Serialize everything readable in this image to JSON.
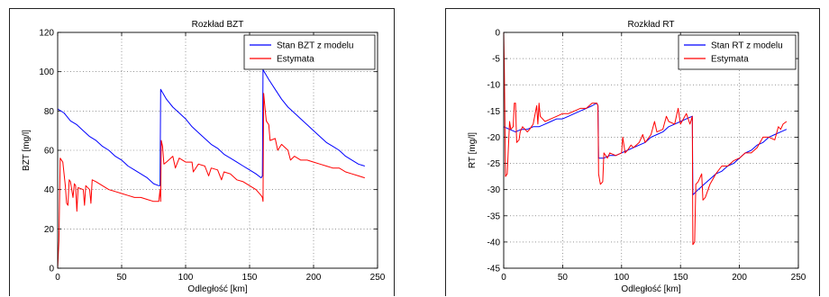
{
  "chart_data": [
    {
      "type": "line",
      "title": "Rozkład BZT",
      "xlabel": "Odległość [km]",
      "ylabel": "BZT [mg/l]",
      "xlim": [
        0,
        250
      ],
      "ylim": [
        0,
        120
      ],
      "xticks": [
        0,
        50,
        100,
        150,
        200,
        250
      ],
      "yticks": [
        0,
        20,
        40,
        60,
        80,
        100,
        120
      ],
      "grid": true,
      "legend_position": "top-right",
      "series": [
        {
          "name": "Stan BZT z modelu",
          "color": "#0000ff",
          "points": [
            [
              0,
              81
            ],
            [
              5,
              79
            ],
            [
              10,
              75
            ],
            [
              15,
              73
            ],
            [
              20,
              70
            ],
            [
              25,
              67
            ],
            [
              30,
              65
            ],
            [
              35,
              62
            ],
            [
              40,
              60
            ],
            [
              45,
              57
            ],
            [
              50,
              55
            ],
            [
              55,
              52
            ],
            [
              60,
              50
            ],
            [
              65,
              48
            ],
            [
              70,
              46
            ],
            [
              75,
              43
            ],
            [
              79,
              42
            ],
            [
              80,
              42
            ],
            [
              80.5,
              91
            ],
            [
              85,
              86
            ],
            [
              90,
              82
            ],
            [
              95,
              79
            ],
            [
              100,
              76
            ],
            [
              105,
              72
            ],
            [
              110,
              69
            ],
            [
              115,
              66
            ],
            [
              120,
              63
            ],
            [
              125,
              61
            ],
            [
              130,
              58
            ],
            [
              135,
              56
            ],
            [
              140,
              54
            ],
            [
              145,
              52
            ],
            [
              150,
              50
            ],
            [
              155,
              48
            ],
            [
              159,
              46
            ],
            [
              160,
              47
            ],
            [
              160.5,
              101
            ],
            [
              165,
              96
            ],
            [
              170,
              91
            ],
            [
              175,
              86
            ],
            [
              180,
              82
            ],
            [
              185,
              79
            ],
            [
              190,
              76
            ],
            [
              195,
              73
            ],
            [
              200,
              70
            ],
            [
              205,
              67
            ],
            [
              210,
              64
            ],
            [
              215,
              62
            ],
            [
              220,
              60
            ],
            [
              225,
              57
            ],
            [
              230,
              55
            ],
            [
              235,
              53
            ],
            [
              240,
              52
            ]
          ]
        },
        {
          "name": "Estymata",
          "color": "#ff0000",
          "points": [
            [
              0,
              0
            ],
            [
              1,
              14
            ],
            [
              2,
              56
            ],
            [
              4,
              54
            ],
            [
              6,
              42
            ],
            [
              7,
              33
            ],
            [
              8,
              32
            ],
            [
              9,
              45
            ],
            [
              10,
              44
            ],
            [
              12,
              36
            ],
            [
              13,
              43
            ],
            [
              14,
              42
            ],
            [
              15,
              29
            ],
            [
              16,
              41
            ],
            [
              20,
              40
            ],
            [
              21,
              32
            ],
            [
              22,
              42
            ],
            [
              25,
              40
            ],
            [
              26,
              33
            ],
            [
              27,
              45
            ],
            [
              30,
              44
            ],
            [
              35,
              42
            ],
            [
              40,
              40
            ],
            [
              45,
              39
            ],
            [
              50,
              38
            ],
            [
              55,
              37
            ],
            [
              60,
              36
            ],
            [
              65,
              36
            ],
            [
              70,
              35
            ],
            [
              75,
              34
            ],
            [
              79,
              34
            ],
            [
              80,
              40
            ],
            [
              80.5,
              34
            ],
            [
              81,
              65
            ],
            [
              82,
              62
            ],
            [
              83,
              53
            ],
            [
              85,
              54
            ],
            [
              90,
              57
            ],
            [
              92,
              51
            ],
            [
              95,
              56
            ],
            [
              100,
              54
            ],
            [
              105,
              54
            ],
            [
              106,
              49
            ],
            [
              110,
              53
            ],
            [
              115,
              52
            ],
            [
              118,
              47
            ],
            [
              120,
              51
            ],
            [
              125,
              50
            ],
            [
              128,
              45
            ],
            [
              130,
              49
            ],
            [
              135,
              48
            ],
            [
              140,
              45
            ],
            [
              145,
              44
            ],
            [
              150,
              42
            ],
            [
              155,
              40
            ],
            [
              159,
              37
            ],
            [
              160,
              36
            ],
            [
              160.5,
              34
            ],
            [
              161,
              89
            ],
            [
              162,
              82
            ],
            [
              163,
              75
            ],
            [
              165,
              73
            ],
            [
              166,
              65
            ],
            [
              170,
              66
            ],
            [
              172,
              60
            ],
            [
              175,
              63
            ],
            [
              180,
              60
            ],
            [
              182,
              55
            ],
            [
              185,
              57
            ],
            [
              190,
              55
            ],
            [
              195,
              55
            ],
            [
              200,
              54
            ],
            [
              205,
              53
            ],
            [
              210,
              52
            ],
            [
              215,
              51
            ],
            [
              220,
              51
            ],
            [
              225,
              49
            ],
            [
              230,
              48
            ],
            [
              235,
              47
            ],
            [
              240,
              46
            ]
          ]
        }
      ]
    },
    {
      "type": "line",
      "title": "Rozkład RT",
      "xlabel": "Odległość [km]",
      "ylabel": "RT [mg/l]",
      "xlim": [
        0,
        250
      ],
      "ylim": [
        -45,
        0
      ],
      "xticks": [
        0,
        50,
        100,
        150,
        200,
        250
      ],
      "yticks": [
        0,
        -5,
        -10,
        -15,
        -20,
        -25,
        -30,
        -35,
        -40,
        -45
      ],
      "grid": true,
      "legend_position": "top-right",
      "series": [
        {
          "name": "Stan RT z modelu",
          "color": "#0000ff",
          "points": [
            [
              0,
              -18
            ],
            [
              5,
              -18.5
            ],
            [
              10,
              -19
            ],
            [
              15,
              -18.5
            ],
            [
              20,
              -18.5
            ],
            [
              25,
              -18
            ],
            [
              30,
              -18
            ],
            [
              35,
              -17.5
            ],
            [
              40,
              -17
            ],
            [
              45,
              -16.5
            ],
            [
              50,
              -16.5
            ],
            [
              55,
              -16
            ],
            [
              60,
              -15.5
            ],
            [
              65,
              -15
            ],
            [
              70,
              -14.5
            ],
            [
              75,
              -14
            ],
            [
              79,
              -13.5
            ],
            [
              80,
              -14
            ],
            [
              80.5,
              -24
            ],
            [
              85,
              -24
            ],
            [
              90,
              -23.5
            ],
            [
              95,
              -23.5
            ],
            [
              100,
              -23
            ],
            [
              105,
              -22.5
            ],
            [
              110,
              -22
            ],
            [
              115,
              -21.5
            ],
            [
              120,
              -21
            ],
            [
              125,
              -20
            ],
            [
              130,
              -19.5
            ],
            [
              135,
              -19
            ],
            [
              140,
              -18
            ],
            [
              145,
              -17.5
            ],
            [
              150,
              -17
            ],
            [
              155,
              -16.5
            ],
            [
              160,
              -16
            ],
            [
              160.5,
              -31
            ],
            [
              165,
              -30
            ],
            [
              170,
              -29
            ],
            [
              175,
              -28
            ],
            [
              180,
              -27
            ],
            [
              185,
              -26.5
            ],
            [
              190,
              -25.5
            ],
            [
              195,
              -25
            ],
            [
              200,
              -24
            ],
            [
              205,
              -23
            ],
            [
              210,
              -22.5
            ],
            [
              215,
              -21.5
            ],
            [
              220,
              -21
            ],
            [
              225,
              -20
            ],
            [
              230,
              -19.5
            ],
            [
              235,
              -19
            ],
            [
              240,
              -18.5
            ]
          ]
        },
        {
          "name": "Estymata",
          "color": "#ff0000",
          "points": [
            [
              0,
              0
            ],
            [
              0.5,
              -7
            ],
            [
              1.5,
              -27.5
            ],
            [
              3,
              -27
            ],
            [
              5,
              -17
            ],
            [
              6,
              -18.5
            ],
            [
              8,
              -18
            ],
            [
              9,
              -13.5
            ],
            [
              10,
              -13.5
            ],
            [
              11,
              -21
            ],
            [
              13,
              -20.5
            ],
            [
              14,
              -19
            ],
            [
              16,
              -18
            ],
            [
              20,
              -19
            ],
            [
              22,
              -18.5
            ],
            [
              25,
              -17.5
            ],
            [
              28,
              -14
            ],
            [
              29,
              -17.5
            ],
            [
              30,
              -13.5
            ],
            [
              31,
              -16
            ],
            [
              35,
              -17
            ],
            [
              40,
              -16.5
            ],
            [
              45,
              -16
            ],
            [
              50,
              -15.5
            ],
            [
              55,
              -15.5
            ],
            [
              60,
              -15
            ],
            [
              65,
              -14.5
            ],
            [
              70,
              -14.5
            ],
            [
              75,
              -13.5
            ],
            [
              79,
              -13.5
            ],
            [
              80,
              -14
            ],
            [
              80.5,
              -27
            ],
            [
              82,
              -29
            ],
            [
              84,
              -28.5
            ],
            [
              85,
              -23
            ],
            [
              88,
              -24
            ],
            [
              90,
              -23
            ],
            [
              95,
              -23.5
            ],
            [
              100,
              -23
            ],
            [
              101,
              -20
            ],
            [
              103,
              -23
            ],
            [
              105,
              -22.5
            ],
            [
              108,
              -21.5
            ],
            [
              110,
              -22
            ],
            [
              115,
              -21
            ],
            [
              118,
              -19.5
            ],
            [
              120,
              -21
            ],
            [
              125,
              -19.5
            ],
            [
              128,
              -17
            ],
            [
              130,
              -19
            ],
            [
              135,
              -18.5
            ],
            [
              138,
              -16
            ],
            [
              140,
              -17
            ],
            [
              145,
              -17.5
            ],
            [
              148,
              -14.5
            ],
            [
              150,
              -17.5
            ],
            [
              155,
              -15.5
            ],
            [
              158,
              -17.5
            ],
            [
              160,
              -16
            ],
            [
              160.5,
              -40.5
            ],
            [
              162,
              -40
            ],
            [
              163,
              -29
            ],
            [
              165,
              -28.5
            ],
            [
              168,
              -27
            ],
            [
              169,
              -32
            ],
            [
              171,
              -31.5
            ],
            [
              175,
              -29
            ],
            [
              180,
              -27
            ],
            [
              185,
              -25.5
            ],
            [
              190,
              -25.5
            ],
            [
              195,
              -24.5
            ],
            [
              200,
              -24
            ],
            [
              205,
              -23
            ],
            [
              210,
              -23
            ],
            [
              215,
              -22
            ],
            [
              220,
              -20
            ],
            [
              225,
              -20
            ],
            [
              230,
              -20.5
            ],
            [
              233,
              -18
            ],
            [
              235,
              -18.5
            ],
            [
              237,
              -17.5
            ],
            [
              240,
              -17
            ]
          ]
        }
      ]
    }
  ]
}
